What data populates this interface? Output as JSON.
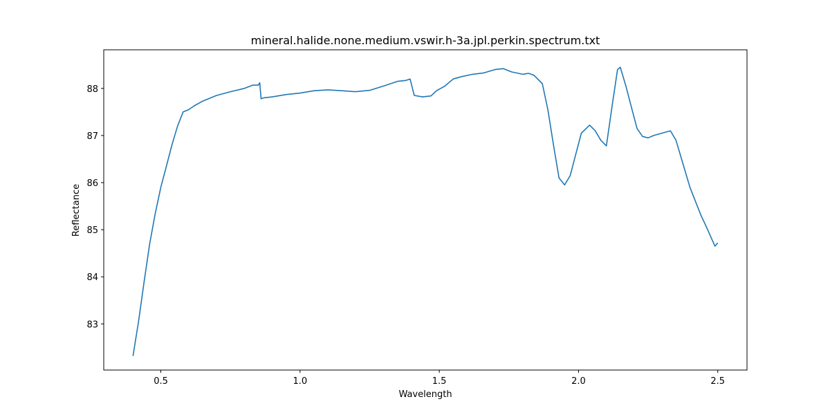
{
  "chart_data": {
    "type": "line",
    "title": "mineral.halide.none.medium.vswir.h-3a.jpl.perkin.spectrum.txt",
    "xlabel": "Wavelength",
    "ylabel": "Reflectance",
    "xlim": [
      0.295,
      2.605
    ],
    "ylim": [
      82.02,
      88.82
    ],
    "xticks": [
      0.5,
      1.0,
      1.5,
      2.0,
      2.5
    ],
    "xtick_labels": [
      "0.5",
      "1.0",
      "1.5",
      "2.0",
      "2.5"
    ],
    "yticks": [
      83,
      84,
      85,
      86,
      87,
      88
    ],
    "ytick_labels": [
      "83",
      "84",
      "85",
      "86",
      "87",
      "88"
    ],
    "grid": false,
    "legend": "none",
    "series": [
      {
        "color": "#1f77b4",
        "x": [
          0.4,
          0.42,
          0.44,
          0.46,
          0.48,
          0.5,
          0.52,
          0.54,
          0.56,
          0.58,
          0.6,
          0.62,
          0.65,
          0.7,
          0.75,
          0.8,
          0.83,
          0.85,
          0.855,
          0.86,
          0.87,
          0.9,
          0.95,
          1.0,
          1.05,
          1.1,
          1.15,
          1.2,
          1.25,
          1.3,
          1.35,
          1.38,
          1.395,
          1.41,
          1.44,
          1.47,
          1.49,
          1.52,
          1.55,
          1.58,
          1.62,
          1.66,
          1.7,
          1.73,
          1.76,
          1.8,
          1.82,
          1.84,
          1.87,
          1.89,
          1.91,
          1.93,
          1.95,
          1.97,
          1.99,
          2.01,
          2.04,
          2.06,
          2.08,
          2.1,
          2.12,
          2.14,
          2.15,
          2.17,
          2.19,
          2.21,
          2.23,
          2.25,
          2.27,
          2.3,
          2.33,
          2.35,
          2.37,
          2.4,
          2.42,
          2.44,
          2.46,
          2.48,
          2.49,
          2.5
        ],
        "y": [
          82.32,
          83.05,
          83.9,
          84.7,
          85.35,
          85.9,
          86.35,
          86.8,
          87.2,
          87.5,
          87.55,
          87.63,
          87.73,
          87.85,
          87.93,
          88.0,
          88.07,
          88.07,
          88.12,
          87.78,
          87.8,
          87.82,
          87.87,
          87.9,
          87.95,
          87.97,
          87.95,
          87.93,
          87.96,
          88.05,
          88.15,
          88.17,
          88.2,
          87.85,
          87.82,
          87.84,
          87.95,
          88.05,
          88.2,
          88.25,
          88.3,
          88.33,
          88.4,
          88.42,
          88.35,
          88.3,
          88.32,
          88.28,
          88.1,
          87.55,
          86.8,
          86.1,
          85.95,
          86.15,
          86.6,
          87.05,
          87.22,
          87.1,
          86.9,
          86.78,
          87.6,
          88.4,
          88.45,
          88.05,
          87.6,
          87.15,
          86.98,
          86.95,
          87.0,
          87.05,
          87.1,
          86.9,
          86.5,
          85.9,
          85.6,
          85.3,
          85.05,
          84.78,
          84.65,
          84.72
        ]
      }
    ]
  }
}
